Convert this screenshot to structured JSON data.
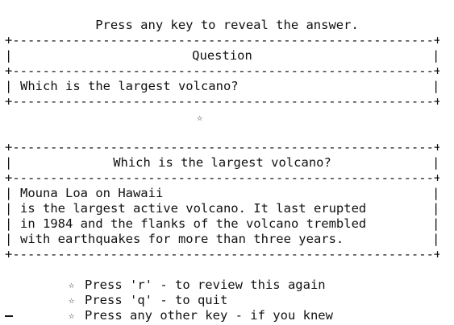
{
  "prompt": "Press any key to reveal the answer.",
  "question_box": {
    "header": "Question",
    "text": "Which is the largest volcano?"
  },
  "separator_star": "☆",
  "answer_box": {
    "header": "Which is the largest volcano?",
    "lines": [
      "Mouna Loa on Hawaii",
      "is the largest active volcano. It last erupted",
      "in 1984 and the flanks of the volcano trembled",
      "with earthquakes for more than three years."
    ]
  },
  "options": [
    {
      "star": "☆",
      "label": "Press 'r' - to review this again"
    },
    {
      "star": "☆",
      "label": "Press 'q' - to quit"
    },
    {
      "star": "☆",
      "label": "Press any other key - if you knew"
    }
  ],
  "border_chars": {
    "corner": "+",
    "horizontal": "-",
    "vertical": "|"
  }
}
